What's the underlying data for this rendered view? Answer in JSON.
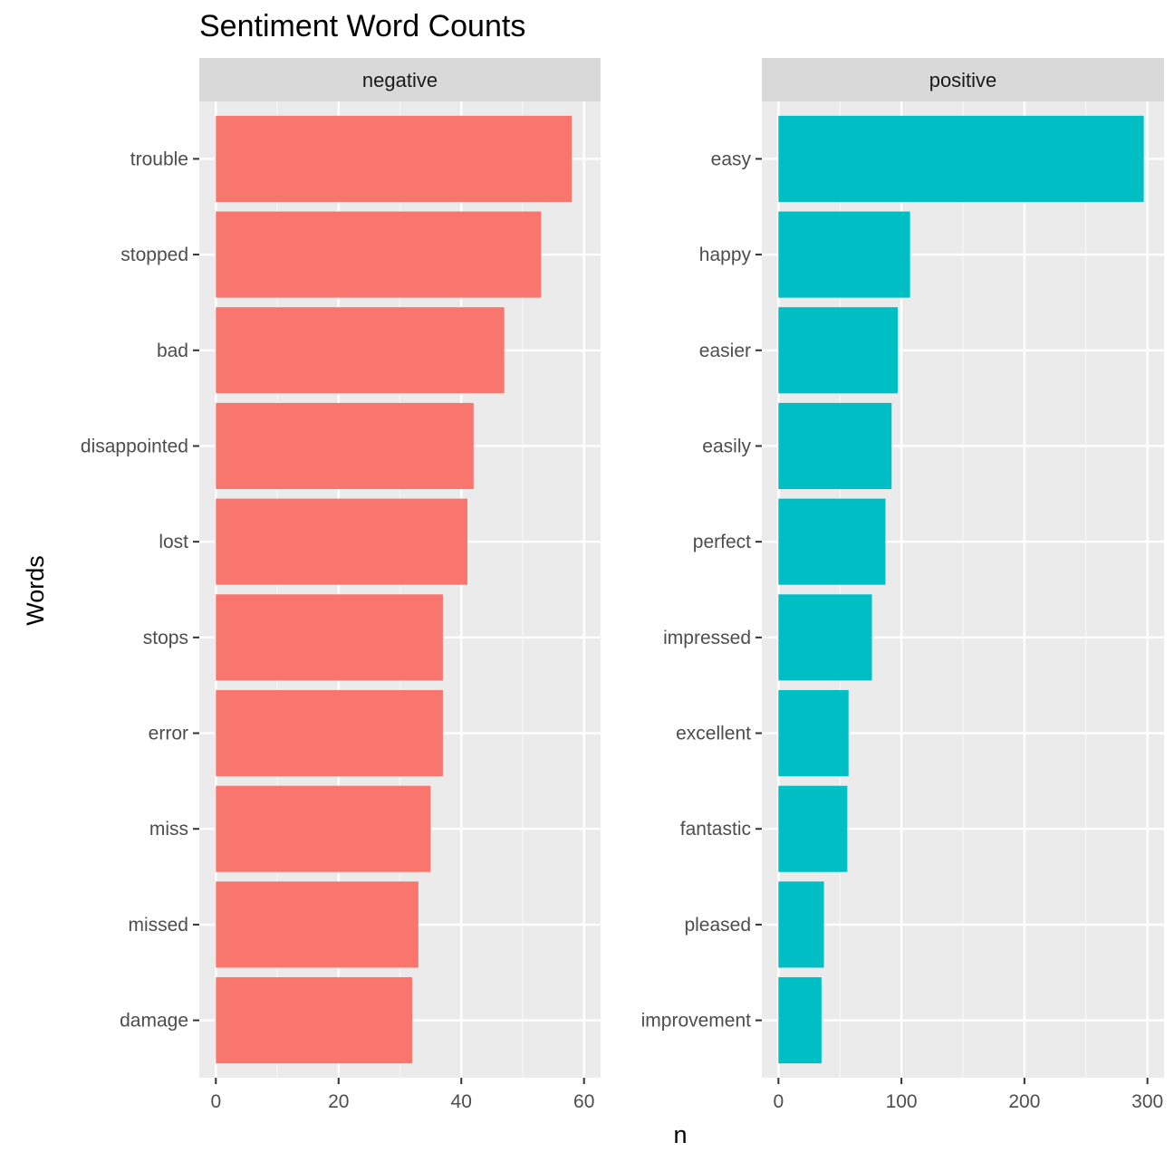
{
  "chart_data": {
    "type": "bar",
    "orientation": "horizontal",
    "title": "Sentiment Word Counts",
    "xlabel": "n",
    "ylabel": "Words",
    "grid": true,
    "legend": "none",
    "panels": [
      {
        "name": "negative",
        "color": "#F8766D",
        "xlim": [
          0,
          60
        ],
        "xticks": [
          0,
          20,
          40,
          60
        ],
        "categories": [
          "trouble",
          "stopped",
          "bad",
          "disappointed",
          "lost",
          "stops",
          "error",
          "miss",
          "missed",
          "damage"
        ],
        "values": [
          58,
          53,
          47,
          42,
          41,
          37,
          37,
          35,
          33,
          32
        ]
      },
      {
        "name": "positive",
        "color": "#00BFC4",
        "xlim": [
          0,
          300
        ],
        "xticks": [
          0,
          100,
          200,
          300
        ],
        "categories": [
          "easy",
          "happy",
          "easier",
          "easily",
          "perfect",
          "impressed",
          "excellent",
          "fantastic",
          "pleased",
          "improvement"
        ],
        "values": [
          297,
          107,
          97,
          92,
          87,
          76,
          57,
          56,
          37,
          35
        ]
      }
    ]
  }
}
